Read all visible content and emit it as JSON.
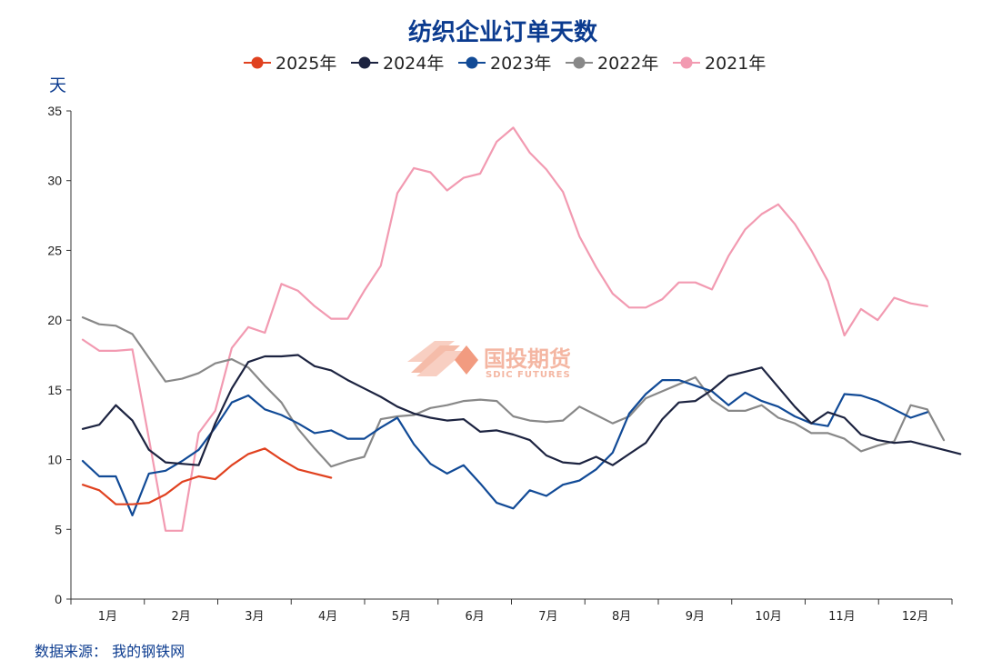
{
  "chart_data": {
    "type": "line",
    "title": "纺织企业订单天数",
    "ylabel": "天",
    "ylim": [
      0,
      35
    ],
    "yticks": [
      0,
      5,
      10,
      15,
      20,
      25,
      30,
      35
    ],
    "month_labels": [
      "1月",
      "2月",
      "3月",
      "4月",
      "5月",
      "6月",
      "7月",
      "8月",
      "9月",
      "10月",
      "11月",
      "12月"
    ],
    "grid": false,
    "legend_position": "top",
    "source": "数据来源：  我的钢铁网",
    "watermark": {
      "text": "国投期货",
      "sub": "SDIC FUTURES"
    },
    "series": [
      {
        "name": "2025年",
        "color": "#e0411f",
        "values": [
          8.2,
          7.8,
          6.8,
          6.8,
          6.9,
          7.5,
          8.4,
          8.8,
          8.6,
          9.6,
          10.4,
          10.8,
          10.0,
          9.3,
          9.0,
          8.7
        ]
      },
      {
        "name": "2024年",
        "color": "#1c2340",
        "values": [
          12.2,
          12.5,
          13.9,
          12.8,
          10.7,
          9.8,
          9.7,
          9.6,
          12.6,
          15.1,
          17.0,
          17.4,
          17.4,
          17.5,
          16.7,
          16.4,
          15.7,
          15.1,
          14.5,
          13.8,
          13.3,
          13.0,
          12.8,
          12.9,
          12.0,
          12.1,
          11.8,
          11.4,
          10.3,
          9.8,
          9.7,
          10.2,
          9.6,
          10.4,
          11.2,
          12.9,
          14.1,
          14.2,
          15.0,
          16.0,
          16.3,
          16.6,
          15.2,
          13.8,
          12.6,
          13.4,
          13.0,
          11.8,
          11.4,
          11.2,
          11.3,
          11.0,
          10.7,
          10.4
        ]
      },
      {
        "name": "2023年",
        "color": "#114a96",
        "values": [
          9.9,
          8.8,
          8.8,
          6.0,
          9.0,
          9.2,
          9.9,
          10.7,
          12.3,
          14.1,
          14.6,
          13.6,
          13.2,
          12.6,
          11.9,
          12.1,
          11.5,
          11.5,
          12.3,
          13.0,
          11.1,
          9.7,
          9.0,
          9.6,
          8.3,
          6.9,
          6.5,
          7.8,
          7.4,
          8.2,
          8.5,
          9.3,
          10.5,
          13.3,
          14.7,
          15.7,
          15.7,
          15.3,
          14.9,
          13.9,
          14.8,
          14.2,
          13.8,
          13.1,
          12.6,
          12.4,
          14.7,
          14.6,
          14.2,
          13.6,
          13.0,
          13.4
        ]
      },
      {
        "name": "2022年",
        "color": "#888888",
        "values": [
          20.2,
          19.7,
          19.6,
          19.0,
          17.3,
          15.6,
          15.8,
          16.2,
          16.9,
          17.2,
          16.6,
          15.3,
          14.1,
          12.2,
          10.8,
          9.5,
          9.9,
          10.2,
          12.9,
          13.1,
          13.2,
          13.7,
          13.9,
          14.2,
          14.3,
          14.2,
          13.1,
          12.8,
          12.7,
          12.8,
          13.8,
          13.2,
          12.6,
          13.1,
          14.4,
          14.9,
          15.4,
          15.9,
          14.3,
          13.5,
          13.5,
          13.9,
          13.0,
          12.6,
          11.9,
          11.9,
          11.5,
          10.6,
          11.0,
          11.3,
          13.9,
          13.6,
          11.4
        ]
      },
      {
        "name": "2021年",
        "color": "#f29ab1",
        "values": [
          18.6,
          17.8,
          17.8,
          17.9,
          11.5,
          4.9,
          4.9,
          11.9,
          13.5,
          18.0,
          19.5,
          19.1,
          22.6,
          22.1,
          21.0,
          20.1,
          20.1,
          22.1,
          23.9,
          29.1,
          30.9,
          30.6,
          29.3,
          30.2,
          30.5,
          32.8,
          33.8,
          32.0,
          30.8,
          29.2,
          26.0,
          23.8,
          21.9,
          20.9,
          20.9,
          21.5,
          22.7,
          22.7,
          22.2,
          24.6,
          26.5,
          27.6,
          28.3,
          26.9,
          25.0,
          22.8,
          18.9,
          20.8,
          20.0,
          21.6,
          21.2,
          21.0
        ]
      }
    ]
  }
}
